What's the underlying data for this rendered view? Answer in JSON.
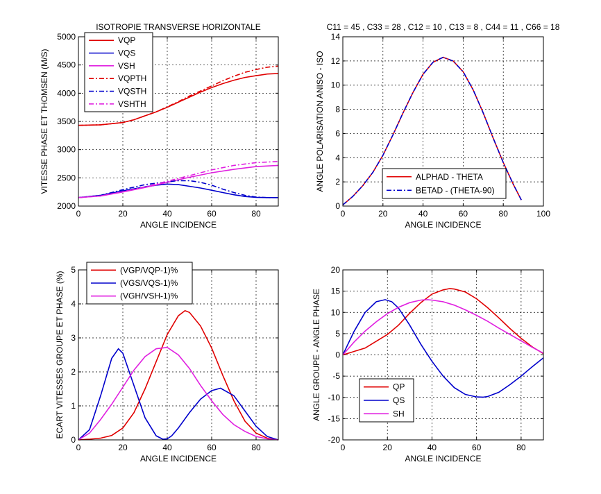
{
  "window": {
    "background": "#ffffff"
  },
  "colors": {
    "red": "#e00000",
    "blue": "#0000cc",
    "magenta": "#e020e0"
  },
  "chart_data": [
    {
      "id": "p1",
      "type": "line",
      "title": "ISOTROPIE TRANSVERSE HORIZONTALE",
      "xlabel": "ANGLE INCIDENCE",
      "ylabel": "VITESSE PHASE ET THOMSEN (M/S)",
      "xlim": [
        0,
        90
      ],
      "ylim": [
        2000,
        5000
      ],
      "xticks": [
        0,
        20,
        40,
        60,
        80
      ],
      "yticks": [
        2000,
        2500,
        3000,
        3500,
        4000,
        4500,
        5000
      ],
      "grid": true,
      "legend_position": "top-left",
      "series": [
        {
          "name": "VQP",
          "color": "red",
          "dash": "solid",
          "x": [
            0,
            10,
            20,
            25,
            30,
            35,
            40,
            45,
            50,
            55,
            60,
            65,
            70,
            75,
            80,
            85,
            90
          ],
          "y": [
            3430,
            3440,
            3480,
            3530,
            3600,
            3670,
            3750,
            3840,
            3930,
            4020,
            4100,
            4170,
            4230,
            4280,
            4310,
            4340,
            4350
          ]
        },
        {
          "name": "VQS",
          "color": "blue",
          "dash": "solid",
          "x": [
            0,
            10,
            20,
            30,
            35,
            40,
            45,
            50,
            55,
            60,
            65,
            70,
            75,
            80,
            85,
            90
          ],
          "y": [
            2150,
            2190,
            2270,
            2340,
            2370,
            2390,
            2380,
            2350,
            2320,
            2280,
            2240,
            2200,
            2170,
            2155,
            2150,
            2150
          ]
        },
        {
          "name": "VSH",
          "color": "magenta",
          "dash": "solid",
          "x": [
            0,
            10,
            20,
            30,
            40,
            50,
            60,
            70,
            80,
            90
          ],
          "y": [
            2150,
            2180,
            2250,
            2330,
            2420,
            2510,
            2590,
            2650,
            2700,
            2720
          ]
        },
        {
          "name": "VQPTH",
          "color": "red",
          "dash": "dashdot",
          "x": [
            0,
            10,
            20,
            25,
            30,
            35,
            40,
            45,
            50,
            55,
            60,
            65,
            70,
            75,
            80,
            85,
            90
          ],
          "y": [
            3430,
            3440,
            3480,
            3530,
            3600,
            3670,
            3760,
            3850,
            3950,
            4040,
            4130,
            4220,
            4300,
            4370,
            4420,
            4460,
            4480
          ]
        },
        {
          "name": "VQSTH",
          "color": "blue",
          "dash": "dashdot",
          "x": [
            0,
            10,
            20,
            30,
            40,
            45,
            50,
            55,
            60,
            65,
            70,
            75,
            80,
            85,
            90
          ],
          "y": [
            2150,
            2190,
            2290,
            2380,
            2430,
            2450,
            2450,
            2420,
            2370,
            2300,
            2240,
            2190,
            2160,
            2150,
            2150
          ]
        },
        {
          "name": "VSHTH",
          "color": "magenta",
          "dash": "dashdot",
          "x": [
            0,
            10,
            20,
            30,
            40,
            50,
            60,
            70,
            80,
            90
          ],
          "y": [
            2150,
            2180,
            2255,
            2340,
            2440,
            2540,
            2640,
            2720,
            2770,
            2790
          ]
        }
      ]
    },
    {
      "id": "p2",
      "type": "line",
      "title": "C11 = 45 , C33 = 28 , C12 = 10 , C13 = 8 , C44 = 11 , C66 = 18",
      "xlabel": "ANGLE INCIDENCE",
      "ylabel": "ANGLE POLARISATION ANISO - ISO",
      "xlim": [
        0,
        100
      ],
      "ylim": [
        0,
        14
      ],
      "xticks": [
        0,
        20,
        40,
        60,
        80,
        100
      ],
      "yticks": [
        0,
        2,
        4,
        6,
        8,
        10,
        12,
        14
      ],
      "grid": true,
      "legend_position": "bottom-right",
      "series": [
        {
          "name": "ALPHAD - THETA",
          "color": "red",
          "dash": "solid",
          "x": [
            0,
            5,
            10,
            15,
            20,
            25,
            30,
            35,
            40,
            45,
            50,
            55,
            60,
            65,
            70,
            75,
            80,
            85,
            89
          ],
          "y": [
            0.1,
            0.8,
            1.7,
            2.8,
            4.2,
            5.9,
            7.7,
            9.4,
            10.9,
            11.9,
            12.3,
            12.0,
            11.1,
            9.6,
            7.7,
            5.6,
            3.6,
            1.8,
            0.5
          ]
        },
        {
          "name": "BETAD - (THETA-90)",
          "color": "blue",
          "dash": "dashdot",
          "x": [
            0,
            5,
            10,
            15,
            20,
            25,
            30,
            35,
            40,
            45,
            50,
            55,
            60,
            65,
            70,
            75,
            80,
            85,
            89
          ],
          "y": [
            0.1,
            0.8,
            1.7,
            2.8,
            4.2,
            5.9,
            7.7,
            9.4,
            10.9,
            11.9,
            12.3,
            12.0,
            11.1,
            9.6,
            7.7,
            5.6,
            3.6,
            1.8,
            0.5
          ]
        }
      ]
    },
    {
      "id": "p3",
      "type": "line",
      "title": "",
      "xlabel": "ANGLE INCIDENCE",
      "ylabel": "ECART VITESSES GROUPE ET PHASE (%)",
      "xlim": [
        0,
        90
      ],
      "ylim": [
        0,
        5
      ],
      "xticks": [
        0,
        20,
        40,
        60,
        80
      ],
      "yticks": [
        0,
        1,
        2,
        3,
        4,
        5
      ],
      "grid": true,
      "legend_position": "top-left",
      "series": [
        {
          "name": "(VGP/VQP-1)%",
          "color": "red",
          "dash": "solid",
          "x": [
            0,
            5,
            10,
            15,
            20,
            25,
            30,
            35,
            40,
            45,
            48,
            50,
            55,
            60,
            65,
            70,
            75,
            80,
            85,
            90
          ],
          "y": [
            0,
            0.02,
            0.05,
            0.13,
            0.35,
            0.8,
            1.5,
            2.3,
            3.1,
            3.65,
            3.8,
            3.75,
            3.35,
            2.7,
            1.9,
            1.15,
            0.55,
            0.2,
            0.05,
            0
          ]
        },
        {
          "name": "(VGS/VQS-1)%",
          "color": "blue",
          "dash": "solid",
          "x": [
            0,
            5,
            10,
            15,
            18,
            20,
            25,
            30,
            35,
            38,
            40,
            42,
            45,
            50,
            55,
            60,
            64,
            70,
            75,
            80,
            85,
            90
          ],
          "y": [
            0,
            0.3,
            1.3,
            2.4,
            2.68,
            2.55,
            1.6,
            0.65,
            0.12,
            0.02,
            0.03,
            0.12,
            0.35,
            0.8,
            1.2,
            1.45,
            1.52,
            1.3,
            0.85,
            0.4,
            0.1,
            0
          ]
        },
        {
          "name": "(VGH/VSH-1)%",
          "color": "magenta",
          "dash": "solid",
          "x": [
            0,
            5,
            10,
            15,
            20,
            25,
            30,
            35,
            40,
            45,
            50,
            55,
            60,
            65,
            70,
            75,
            80,
            85,
            90
          ],
          "y": [
            0,
            0.2,
            0.6,
            1.05,
            1.55,
            2.05,
            2.45,
            2.68,
            2.72,
            2.5,
            2.1,
            1.6,
            1.15,
            0.75,
            0.45,
            0.25,
            0.1,
            0.03,
            0
          ]
        }
      ]
    },
    {
      "id": "p4",
      "type": "line",
      "title": "",
      "xlabel": "ANGLE INCIDENCE",
      "ylabel": "ANGLE GROUPE - ANGLE PHASE",
      "xlim": [
        0,
        90
      ],
      "ylim": [
        -20,
        20
      ],
      "xticks": [
        0,
        20,
        40,
        60,
        80
      ],
      "yticks": [
        -20,
        -15,
        -10,
        -5,
        0,
        5,
        10,
        15,
        20
      ],
      "grid": true,
      "legend_position": "bottom-left",
      "series": [
        {
          "name": "QP",
          "color": "red",
          "dash": "solid",
          "x": [
            0,
            10,
            20,
            25,
            30,
            35,
            40,
            45,
            48,
            50,
            55,
            60,
            65,
            70,
            75,
            80,
            85,
            90
          ],
          "y": [
            0,
            1.6,
            4.8,
            7.0,
            9.8,
            12.3,
            14.3,
            15.3,
            15.6,
            15.5,
            14.8,
            13.2,
            11.1,
            8.7,
            6.2,
            3.9,
            1.9,
            0.3
          ]
        },
        {
          "name": "QS",
          "color": "blue",
          "dash": "solid",
          "x": [
            0,
            5,
            10,
            15,
            19,
            22,
            25,
            30,
            35,
            40,
            45,
            50,
            55,
            60,
            63,
            65,
            70,
            75,
            80,
            85,
            90
          ],
          "y": [
            0,
            5.5,
            10.0,
            12.5,
            13.0,
            12.5,
            11.0,
            7.0,
            2.5,
            -1.5,
            -5.0,
            -7.7,
            -9.3,
            -9.9,
            -9.95,
            -9.8,
            -8.8,
            -7.0,
            -5.0,
            -2.8,
            -0.7
          ]
        },
        {
          "name": "SH",
          "color": "magenta",
          "dash": "solid",
          "x": [
            0,
            5,
            10,
            15,
            20,
            25,
            30,
            35,
            38,
            40,
            45,
            50,
            55,
            60,
            65,
            70,
            75,
            80,
            85,
            90
          ],
          "y": [
            0,
            3.0,
            5.6,
            7.8,
            9.7,
            11.2,
            12.3,
            12.9,
            13.0,
            12.9,
            12.5,
            11.7,
            10.6,
            9.3,
            7.9,
            6.3,
            4.8,
            3.3,
            1.8,
            0.4
          ]
        }
      ]
    }
  ]
}
